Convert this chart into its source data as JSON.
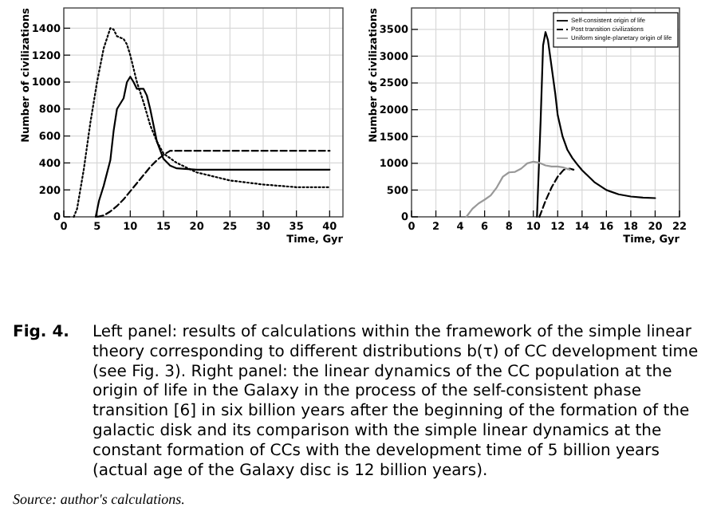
{
  "chart_data": [
    {
      "type": "line",
      "xlabel": "Time, Gyr",
      "ylabel": "Number of civilizations",
      "xlim": [
        0,
        42
      ],
      "ylim": [
        0,
        1550
      ],
      "xticks": [
        0,
        5,
        10,
        15,
        20,
        25,
        30,
        35,
        40
      ],
      "yticks": [
        0,
        200,
        400,
        600,
        800,
        1000,
        1200,
        1400
      ],
      "grid": true,
      "legend": false,
      "marker": "none",
      "series": [
        {
          "color": "#000000",
          "line_style": "solid",
          "x": [
            4.8,
            5.3,
            6,
            7,
            7.5,
            8,
            9,
            9.5,
            10,
            10.5,
            11,
            12,
            12.5,
            13,
            14,
            15,
            16,
            17,
            20,
            25,
            40
          ],
          "values": [
            0,
            120,
            230,
            420,
            640,
            800,
            880,
            1000,
            1040,
            1000,
            950,
            950,
            900,
            800,
            560,
            430,
            380,
            360,
            350,
            350,
            350
          ]
        },
        {
          "color": "#000000",
          "line_style": "dotted",
          "x": [
            1.5,
            2,
            3,
            4,
            5,
            6,
            7,
            7.5,
            8,
            9,
            9.5,
            10,
            11,
            12,
            13,
            14,
            15,
            17,
            20,
            25,
            30,
            35,
            40
          ],
          "values": [
            0,
            60,
            350,
            700,
            1000,
            1250,
            1400,
            1390,
            1340,
            1320,
            1280,
            1200,
            1000,
            850,
            680,
            560,
            470,
            400,
            330,
            270,
            240,
            220,
            220
          ]
        },
        {
          "color": "#000000",
          "line_style": "dashed",
          "x": [
            5,
            6,
            7,
            8,
            9,
            10,
            11,
            12,
            13,
            14,
            15,
            16,
            20,
            30,
            40
          ],
          "values": [
            0,
            10,
            40,
            80,
            130,
            190,
            250,
            310,
            370,
            420,
            460,
            490,
            490,
            490,
            490
          ]
        }
      ]
    },
    {
      "type": "line",
      "xlabel": "Time, Gyr",
      "ylabel": "Number of civilizations",
      "xlim": [
        0,
        22
      ],
      "ylim": [
        0,
        3900
      ],
      "xticks": [
        0,
        2,
        4,
        6,
        8,
        10,
        12,
        14,
        16,
        18,
        20,
        22
      ],
      "yticks": [
        0,
        500,
        1000,
        1500,
        2000,
        2500,
        3000,
        3500
      ],
      "grid": true,
      "legend": "top right",
      "marker": "none",
      "series": [
        {
          "name": "Self-consistent origin of life",
          "color": "#000000",
          "line_style": "solid",
          "x": [
            10.3,
            10.6,
            10.8,
            11,
            11.2,
            11.5,
            11.8,
            12,
            12.4,
            12.8,
            13.2,
            13.6,
            14,
            15,
            16,
            17,
            18,
            19,
            20
          ],
          "values": [
            0,
            1800,
            3200,
            3450,
            3300,
            2800,
            2300,
            1900,
            1500,
            1250,
            1100,
            980,
            870,
            650,
            500,
            420,
            380,
            360,
            350
          ]
        },
        {
          "name": "Post transition civilizations",
          "color": "#000000",
          "line_style": "dashed",
          "x": [
            10.5,
            11,
            11.5,
            12,
            12.5,
            13,
            13.3
          ],
          "values": [
            0,
            300,
            550,
            750,
            880,
            900,
            880
          ]
        },
        {
          "name": "Uniform single-planetary origin of life",
          "color": "#999999",
          "line_style": "solid",
          "x": [
            4.5,
            5,
            5.5,
            6,
            6.5,
            7,
            7.5,
            8,
            8.5,
            9,
            9.5,
            10,
            10.5,
            11,
            11.5,
            12,
            12.5,
            13
          ],
          "values": [
            0,
            150,
            250,
            320,
            400,
            550,
            750,
            830,
            840,
            900,
            1000,
            1030,
            1010,
            960,
            940,
            940,
            920,
            880
          ]
        }
      ],
      "annotations": [
        "Fig. 4. Left panel: results of calculations within the framework of the simple linear theory corresponding to different distributions b(τ) of CC development time (see Fig. 3). Right panel: the linear dynamics of the CC population at the origin of life in the Galaxy in the process of the self-consistent phase transition [6] in six billion years after the beginning of the formation of the galactic disk and its comparison with the simple linear dynamics at the constant formation of CCs with the development time of 5 billion years (actual age of the Galaxy disc is 12 billion years).",
        "Source: author's calculations."
      ]
    }
  ]
}
